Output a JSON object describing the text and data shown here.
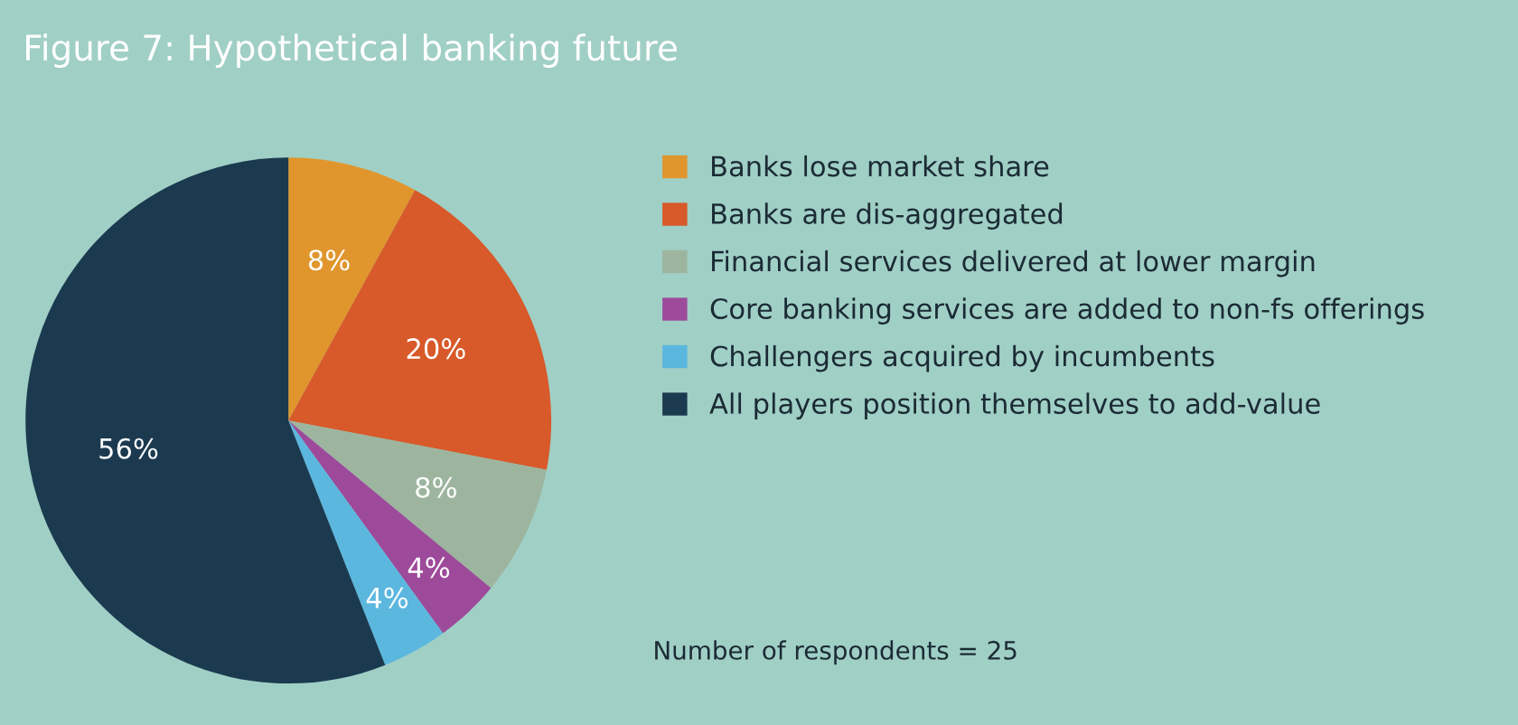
{
  "chart_data": {
    "type": "pie",
    "title": "Figure 7: Hypothetical banking future",
    "categories": [
      "Banks lose market share",
      "Banks are dis-aggregated",
      "Financial services delivered at lower margin",
      "Core banking services are added to non-fs offerings",
      "Challengers acquired by incumbents",
      "All players position themselves to add-value"
    ],
    "values": [
      8,
      20,
      8,
      4,
      4,
      56
    ],
    "colors": [
      "#e0962c",
      "#d8592a",
      "#9db59f",
      "#9d4a9a",
      "#5cb7df",
      "#1b3a50"
    ],
    "value_labels": [
      "8%",
      "20%",
      "8%",
      "4%",
      "4%",
      "56%"
    ],
    "legend": "right",
    "annotations": [
      "Number of respondents = 25"
    ]
  }
}
